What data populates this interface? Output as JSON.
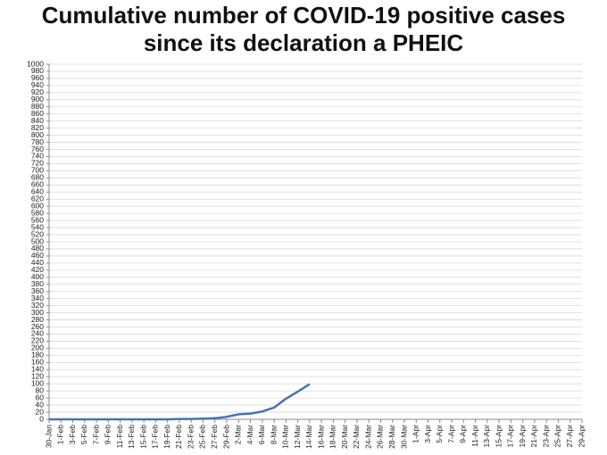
{
  "chart_data": {
    "type": "line",
    "title": "Cumulative number of COVID-19 positive cases since its declaration a PHEIC",
    "categories": [
      "30-Jan",
      "1-Feb",
      "3-Feb",
      "5-Feb",
      "7-Feb",
      "9-Feb",
      "11-Feb",
      "13-Feb",
      "15-Feb",
      "17-Feb",
      "19-Feb",
      "21-Feb",
      "23-Feb",
      "25-Feb",
      "27-Feb",
      "29-Feb",
      "2-Mar",
      "4-Mar",
      "6-Mar",
      "8-Mar",
      "10-Mar",
      "12-Mar",
      "14-Mar",
      "16-Mar",
      "18-Mar",
      "20-Mar",
      "22-Mar",
      "24-Mar",
      "26-Mar",
      "28-Mar",
      "30-Mar",
      "1-Apr",
      "3-Apr",
      "5-Apr",
      "7-Apr",
      "9-Apr",
      "11-Apr",
      "13-Apr",
      "15-Apr",
      "17-Apr",
      "19-Apr",
      "21-Apr",
      "23-Apr",
      "25-Apr",
      "27-Apr",
      "29-Apr"
    ],
    "series": [
      {
        "color": "#4a72b0",
        "values": [
          0,
          0,
          0,
          0,
          0,
          0,
          0,
          0,
          0,
          0,
          0,
          1,
          1,
          2,
          3,
          7,
          14,
          16,
          22,
          33,
          58,
          78,
          99,
          null,
          null,
          null,
          null,
          null,
          null,
          null,
          null,
          null,
          null,
          null,
          null,
          null,
          null,
          null,
          null,
          null,
          null,
          null,
          null,
          null,
          null,
          null
        ]
      }
    ],
    "ylim": [
      0,
      1000
    ],
    "yticks": [
      0,
      20,
      40,
      60,
      80,
      100,
      120,
      140,
      160,
      180,
      200,
      220,
      240,
      260,
      280,
      300,
      320,
      340,
      360,
      380,
      400,
      420,
      440,
      460,
      480,
      500,
      520,
      540,
      560,
      580,
      600,
      620,
      640,
      660,
      680,
      700,
      720,
      740,
      760,
      780,
      800,
      820,
      840,
      860,
      880,
      900,
      920,
      940,
      960,
      980,
      1000
    ],
    "grid": true
  }
}
